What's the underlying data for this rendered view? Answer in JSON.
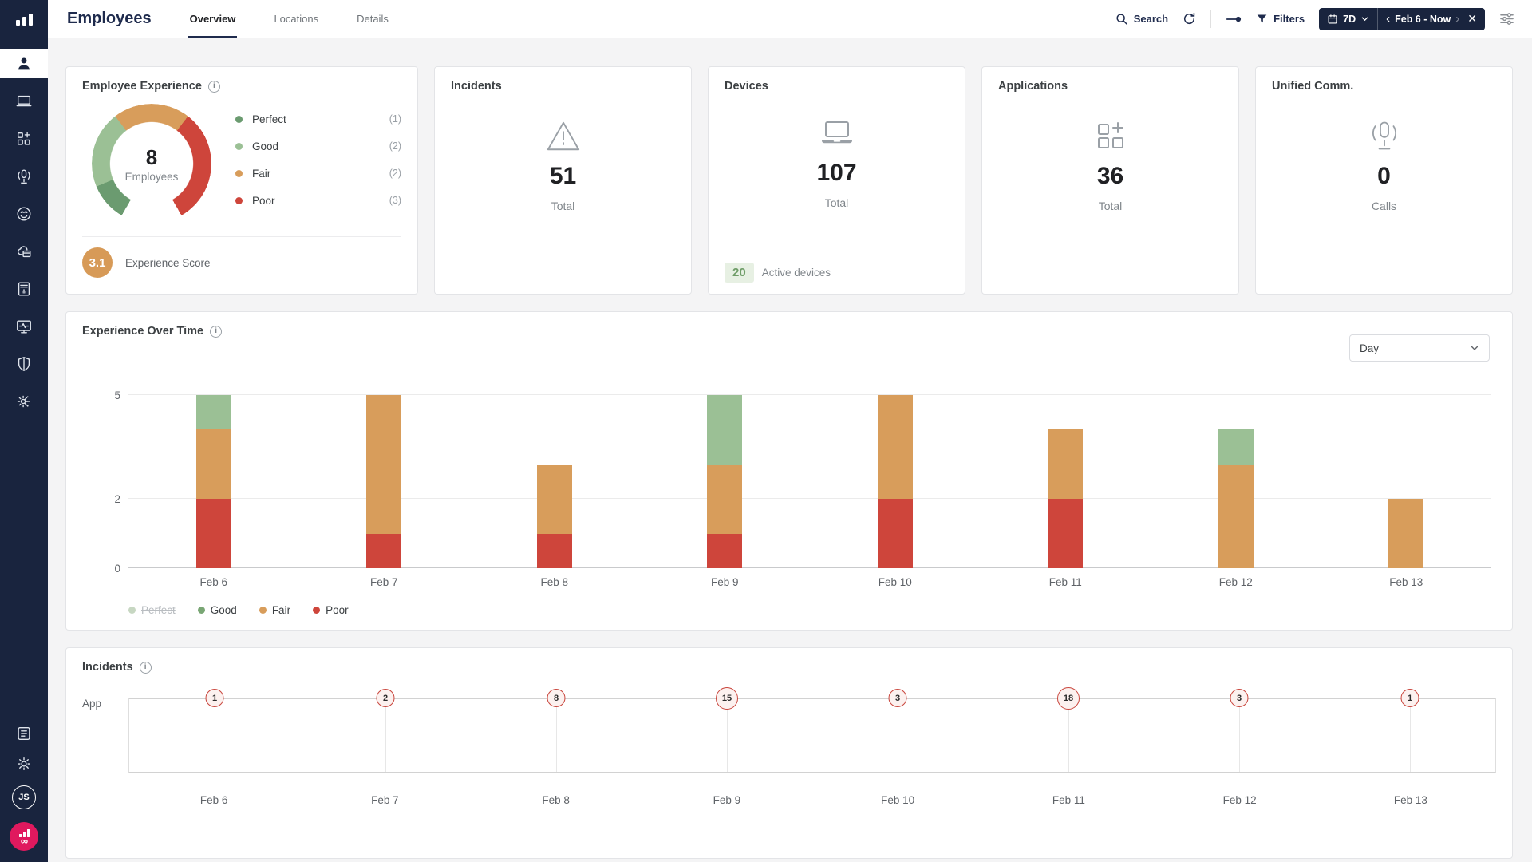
{
  "topbar": {
    "title": "Employees",
    "tabs": [
      {
        "label": "Overview",
        "active": true
      },
      {
        "label": "Locations",
        "active": false
      },
      {
        "label": "Details",
        "active": false
      }
    ],
    "search_label": "Search",
    "filters_label": "Filters",
    "range_label": "7D",
    "date_range": "Feb 6 - Now"
  },
  "sidebar": {
    "items": [
      "employees",
      "devices",
      "applications",
      "unified-comm",
      "experience",
      "cloud-services",
      "reports",
      "monitoring",
      "security",
      "automation"
    ],
    "bottom_items": [
      "documentation",
      "settings",
      "user-avatar",
      "brand"
    ],
    "avatar_initials": "JS"
  },
  "cards": {
    "experience": {
      "title": "Employee Experience",
      "center_value": "8",
      "center_label": "Employees",
      "legend": [
        {
          "label": "Perfect",
          "count": 1,
          "color": "#6B9B70"
        },
        {
          "label": "Good",
          "count": 2,
          "color": "#9BC095"
        },
        {
          "label": "Fair",
          "count": 2,
          "color": "#D89D5B"
        },
        {
          "label": "Poor",
          "count": 3,
          "color": "#CE453B"
        }
      ],
      "score": "3.1",
      "score_label": "Experience Score",
      "score_color": "#D79A57"
    },
    "incidents": {
      "title": "Incidents",
      "value": "51",
      "label": "Total"
    },
    "devices": {
      "title": "Devices",
      "value": "107",
      "label": "Total",
      "badge": "20",
      "badge_label": "Active devices"
    },
    "applications": {
      "title": "Applications",
      "value": "36",
      "label": "Total"
    },
    "unified": {
      "title": "Unified Comm.",
      "value": "0",
      "label": "Calls"
    }
  },
  "experience_chart": {
    "title": "Experience Over Time",
    "interval_label": "Day",
    "categories": [
      "Feb 6",
      "Feb 7",
      "Feb 8",
      "Feb 9",
      "Feb 10",
      "Feb 11",
      "Feb 12",
      "Feb 13"
    ],
    "series": [
      {
        "name": "Poor",
        "color": "#CE453B",
        "values": [
          2,
          1,
          1,
          1,
          2,
          2,
          0,
          0
        ]
      },
      {
        "name": "Fair",
        "color": "#D89D5B",
        "values": [
          2,
          4,
          2,
          2,
          3,
          2,
          3,
          2
        ]
      },
      {
        "name": "Good",
        "color": "#9BC095",
        "values": [
          1,
          0,
          0,
          2,
          0,
          0,
          1,
          0
        ]
      }
    ],
    "legend": [
      {
        "label": "Perfect",
        "color": "#C7D7C2",
        "disabled": true
      },
      {
        "label": "Good",
        "color": "#79A674",
        "disabled": false
      },
      {
        "label": "Fair",
        "color": "#D89D5B",
        "disabled": false
      },
      {
        "label": "Poor",
        "color": "#CE453B",
        "disabled": false
      }
    ],
    "yticks": [
      0,
      2,
      5
    ]
  },
  "incidents_chart": {
    "title": "Incidents",
    "row_label": "App",
    "categories": [
      "Feb 6",
      "Feb 7",
      "Feb 8",
      "Feb 9",
      "Feb 10",
      "Feb 11",
      "Feb 12",
      "Feb 13"
    ],
    "values": [
      1,
      2,
      8,
      15,
      3,
      18,
      3,
      1
    ]
  },
  "chart_data": [
    {
      "type": "pie",
      "variant": "donut-gauge",
      "title": "Employee Experience",
      "labels": [
        "Perfect",
        "Good",
        "Fair",
        "Poor"
      ],
      "values": [
        1,
        2,
        2,
        3
      ],
      "colors": [
        "#6B9B70",
        "#9BC095",
        "#D89D5B",
        "#CE453B"
      ],
      "center_text": "8 Employees",
      "experience_score": 3.1
    },
    {
      "type": "bar",
      "stacked": true,
      "title": "Experience Over Time",
      "interval": "Day",
      "categories": [
        "Feb 6",
        "Feb 7",
        "Feb 8",
        "Feb 9",
        "Feb 10",
        "Feb 11",
        "Feb 12",
        "Feb 13"
      ],
      "series": [
        {
          "name": "Poor",
          "values": [
            2,
            1,
            1,
            1,
            2,
            2,
            0,
            0
          ]
        },
        {
          "name": "Fair",
          "values": [
            2,
            4,
            2,
            2,
            3,
            2,
            3,
            2
          ]
        },
        {
          "name": "Good",
          "values": [
            1,
            0,
            0,
            2,
            0,
            0,
            1,
            0
          ]
        },
        {
          "name": "Perfect",
          "visible": false
        }
      ],
      "ylim": [
        0,
        5
      ],
      "yticks": [
        0,
        2,
        5
      ],
      "legend_position": "bottom"
    },
    {
      "type": "scatter",
      "variant": "event-timeline",
      "title": "Incidents",
      "row": "App",
      "categories": [
        "Feb 6",
        "Feb 7",
        "Feb 8",
        "Feb 9",
        "Feb 10",
        "Feb 11",
        "Feb 12",
        "Feb 13"
      ],
      "values": [
        1,
        2,
        8,
        15,
        3,
        18,
        3,
        1
      ]
    }
  ]
}
